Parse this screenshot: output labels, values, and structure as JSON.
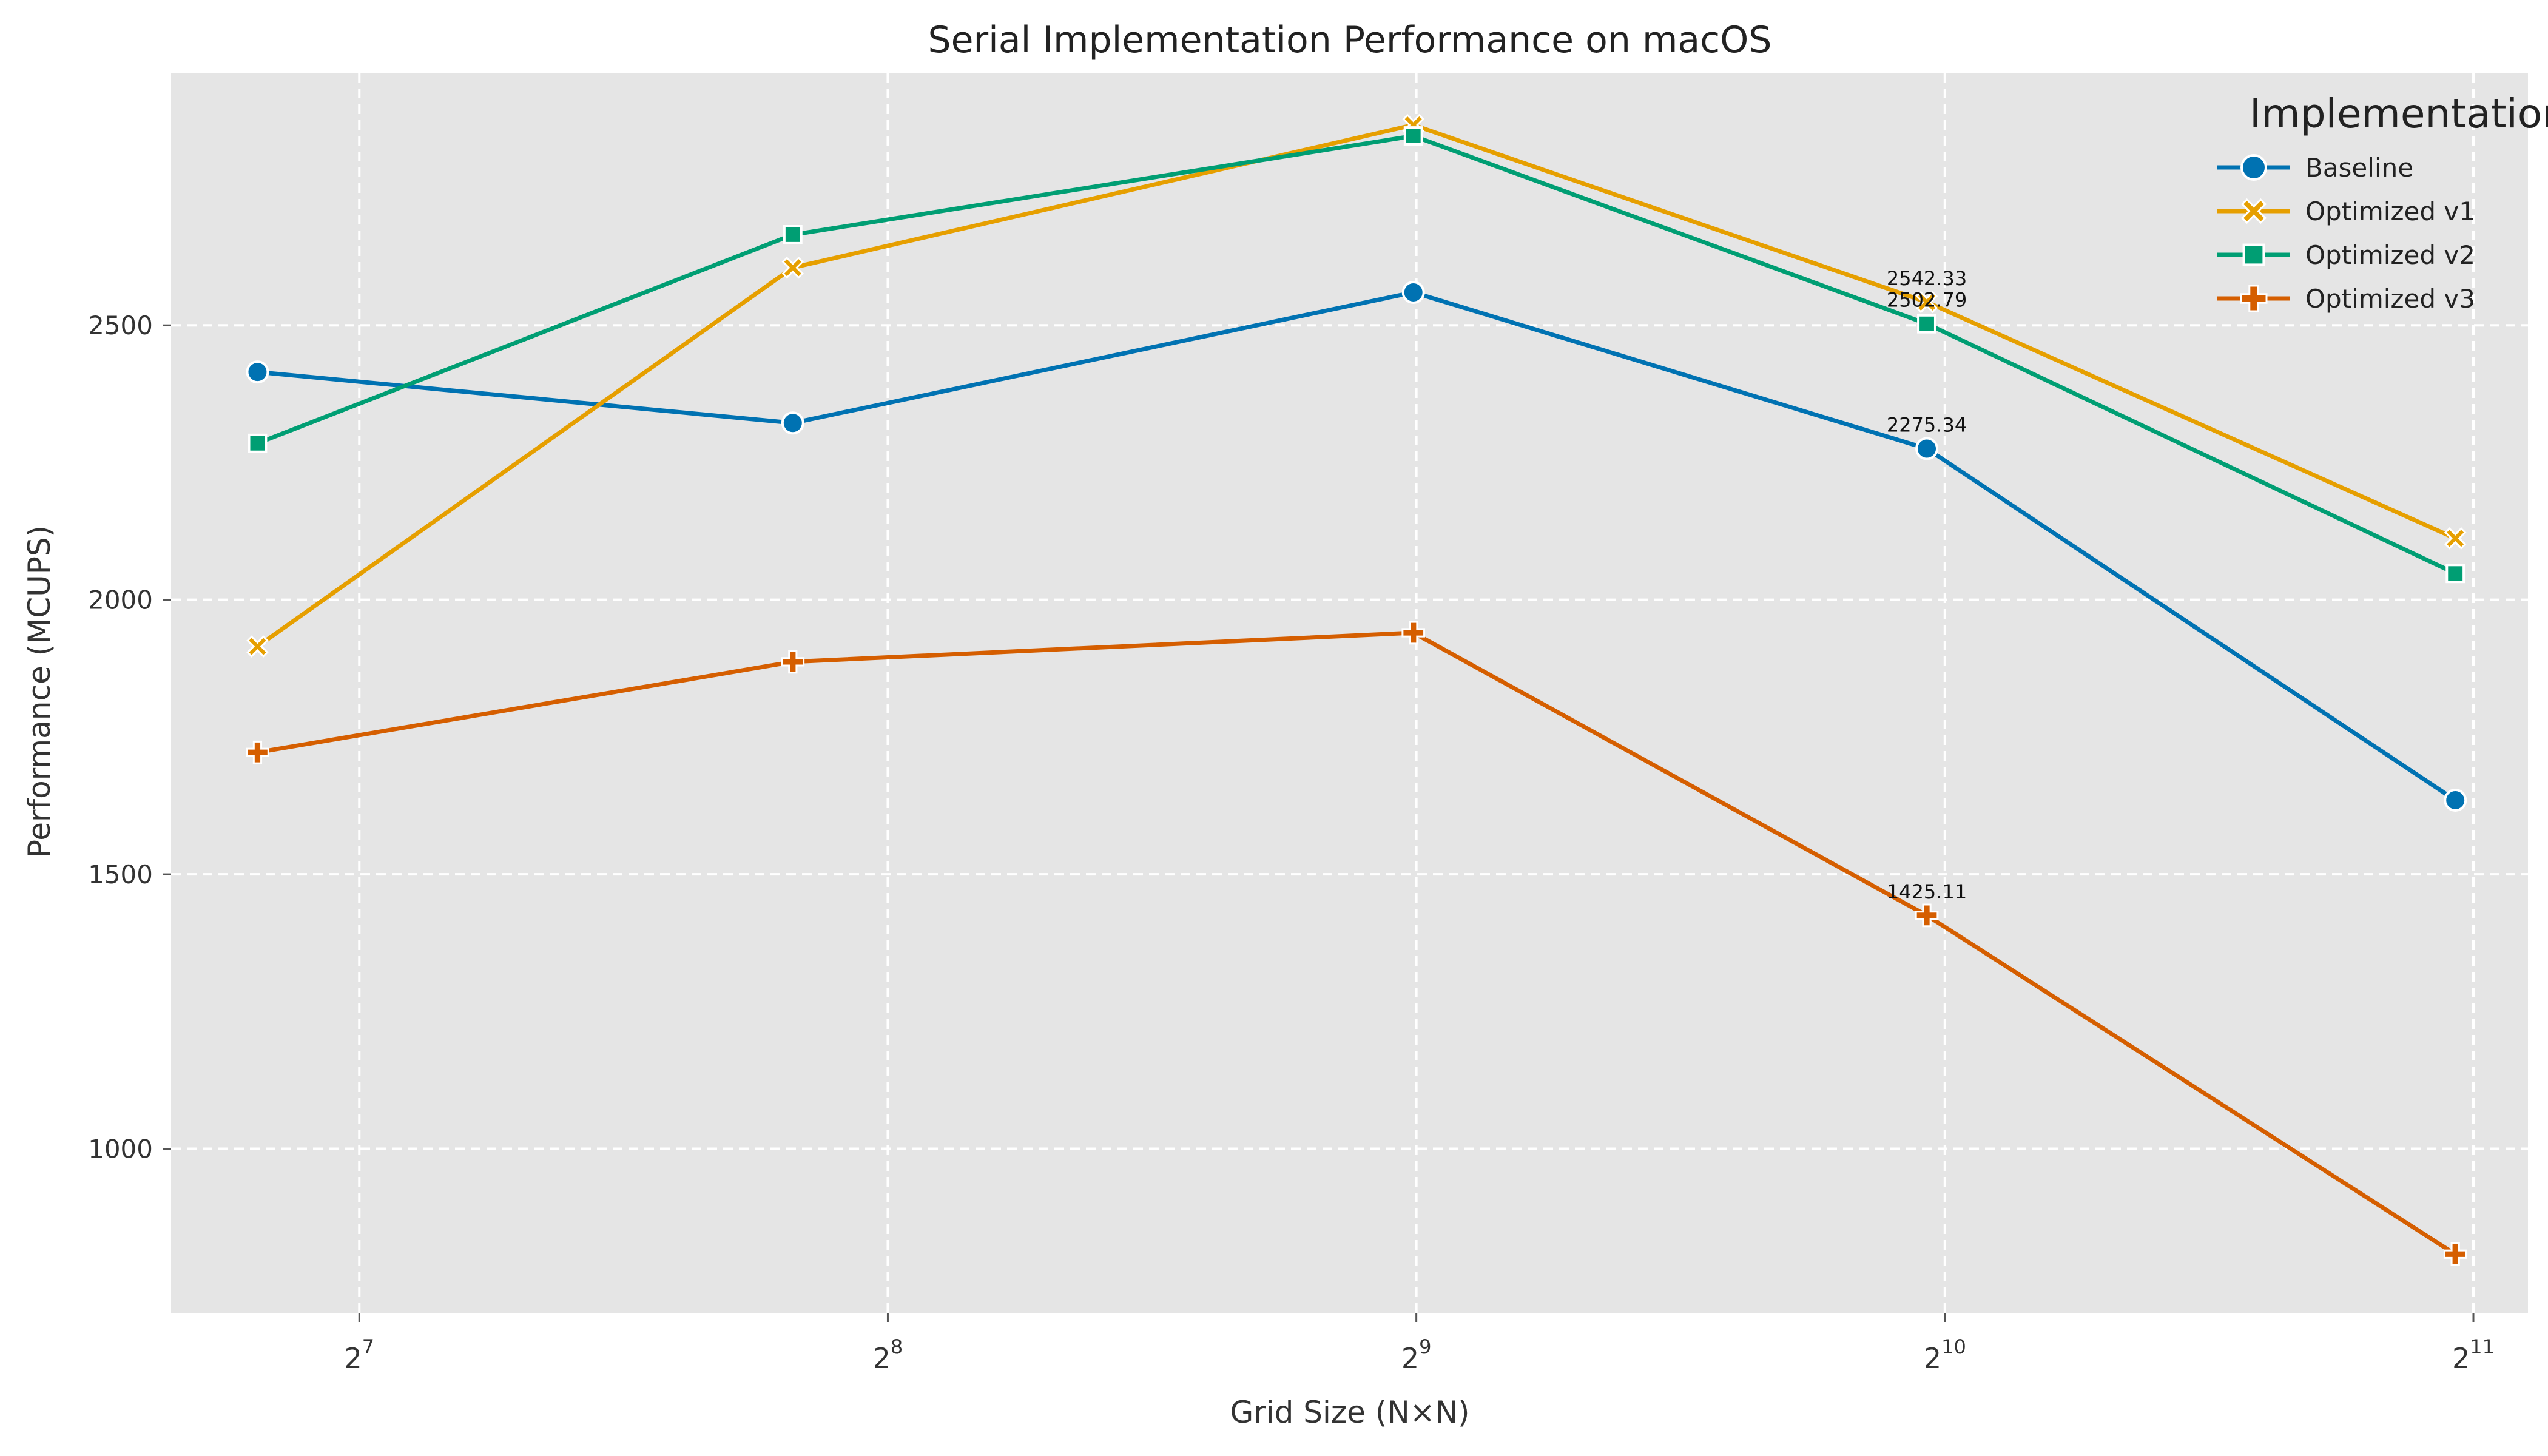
{
  "chart_data": {
    "type": "line",
    "title": "Serial Implementation Performance on macOS",
    "xlabel": "Grid Size (N×N)",
    "ylabel": "Performance (MCUPS)",
    "x_scale": "log2",
    "xlim": [
      100,
      2200
    ],
    "ylim": [
      700,
      2960
    ],
    "x_ticks": [
      {
        "value": 128,
        "base": "2",
        "exp": "7"
      },
      {
        "value": 256,
        "base": "2",
        "exp": "8"
      },
      {
        "value": 512,
        "base": "2",
        "exp": "9"
      },
      {
        "value": 1024,
        "base": "2",
        "exp": "10"
      },
      {
        "value": 2048,
        "base": "2",
        "exp": "11"
      }
    ],
    "y_ticks": [
      {
        "value": 1000,
        "label": "1000"
      },
      {
        "value": 1500,
        "label": "1500"
      },
      {
        "value": 2000,
        "label": "2000"
      },
      {
        "value": 2500,
        "label": "2500"
      }
    ],
    "x": [
      112,
      226,
      510,
      1000,
      2000
    ],
    "grid": true,
    "legend": {
      "title": "Implementation",
      "position": "top-right"
    },
    "series": [
      {
        "name": "Baseline",
        "color": "#0072b2",
        "marker": "circle",
        "values": [
          2415,
          2322,
          2560,
          2275.34,
          1635
        ]
      },
      {
        "name": "Optimized v1",
        "color": "#e69f00",
        "marker": "x",
        "values": [
          1915,
          2605,
          2865,
          2542.33,
          2112
        ]
      },
      {
        "name": "Optimized v2",
        "color": "#009e73",
        "marker": "square",
        "values": [
          2285,
          2665,
          2845,
          2502.79,
          2048
        ]
      },
      {
        "name": "Optimized v3",
        "color": "#d55e00",
        "marker": "plus",
        "values": [
          1722,
          1887,
          1940,
          1425.11,
          808
        ]
      }
    ],
    "annotations": [
      {
        "series": 1,
        "point": 3,
        "text": "2542.33"
      },
      {
        "series": 2,
        "point": 3,
        "text": "2502.79"
      },
      {
        "series": 0,
        "point": 3,
        "text": "2275.34"
      },
      {
        "series": 3,
        "point": 3,
        "text": "1425.11"
      }
    ]
  }
}
